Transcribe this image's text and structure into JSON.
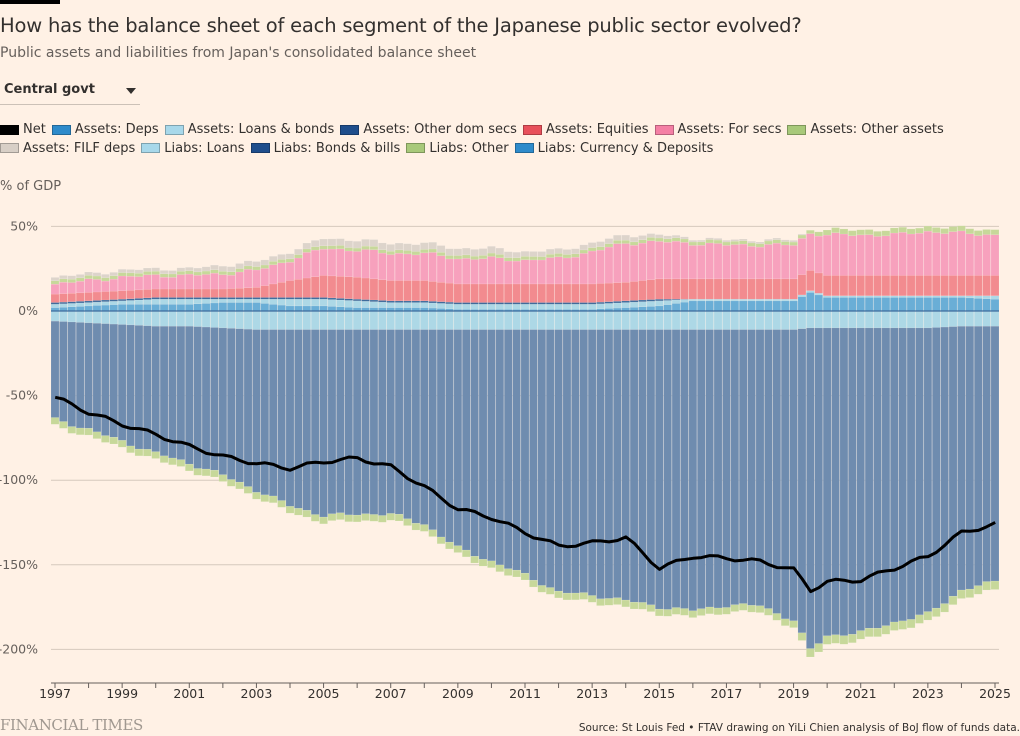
{
  "header": {
    "title": "How has the balance sheet of each segment of the Japanese public sector evolved?",
    "subtitle": "Public assets and liabilities from Japan's consolidated balance sheet"
  },
  "dropdown": {
    "selected": "Central govt"
  },
  "legend": [
    {
      "label": "Net",
      "color": "#000000"
    },
    {
      "label": "Assets: Deps",
      "color": "#2e8bcb"
    },
    {
      "label": "Assets: Loans & bonds",
      "color": "#a8d8ea"
    },
    {
      "label": "Assets: Other dom secs",
      "color": "#1f4e8c"
    },
    {
      "label": "Assets: Equities",
      "color": "#e8505b"
    },
    {
      "label": "Assets: For secs",
      "color": "#f47fa4"
    },
    {
      "label": "Assets: Other assets",
      "color": "#a8c97a"
    },
    {
      "label": "Assets: FILF deps",
      "color": "#d8cfc6"
    },
    {
      "label": "Liabs: Loans",
      "color": "#a8d8ea"
    },
    {
      "label": "Liabs: Bonds & bills",
      "color": "#1f4e8c"
    },
    {
      "label": "Liabs: Other",
      "color": "#a8c97a"
    },
    {
      "label": "Liabs: Currency & Deposits",
      "color": "#2e8bcb"
    }
  ],
  "axis": {
    "unit_label": "% of GDP"
  },
  "footer": {
    "brand": "FINANCIAL TIMES",
    "source": "Source: St Louis Fed • FTAV drawing on YiLi Chien analysis of BoJ flow of funds data."
  },
  "chart_data": {
    "type": "bar",
    "stacked": true,
    "title": "How has the balance sheet of each segment of the Japanese public sector evolved?",
    "subtitle": "Public assets and liabilities from Japan's consolidated balance sheet",
    "ylabel": "% of GDP",
    "xlabel": "",
    "ylim": [
      -220,
      55
    ],
    "yticks": [
      50,
      0,
      -50,
      -100,
      -150,
      -200
    ],
    "ytick_labels": [
      "50%",
      "0%",
      "-50%",
      "-100%",
      "-150%",
      "-200%"
    ],
    "xlim": [
      1997.0,
      2025.25
    ],
    "xticks": [
      1997,
      1998,
      1999,
      2000,
      2001,
      2002,
      2003,
      2004,
      2005,
      2006,
      2007,
      2008,
      2009,
      2010,
      2011,
      2012,
      2013,
      2014,
      2015,
      2016,
      2017,
      2018,
      2019,
      2020,
      2021,
      2022,
      2023,
      2024,
      2025
    ],
    "xtick_labels": [
      "1997",
      "",
      "1999",
      "",
      "2001",
      "",
      "2003",
      "",
      "2005",
      "",
      "2007",
      "",
      "2009",
      "",
      "2011",
      "",
      "2013",
      "",
      "2015",
      "",
      "2017",
      "",
      "2019",
      "",
      "2021",
      "",
      "2023",
      "",
      "2025"
    ],
    "frequency": "quarterly",
    "start": "1997Q1",
    "grid": true,
    "legend_position": "top",
    "anchor_years": [
      1997,
      1998,
      1999,
      2000,
      2001,
      2002,
      2003,
      2004,
      2005,
      2006,
      2007,
      2008,
      2009,
      2010,
      2011,
      2012,
      2013,
      2014,
      2015,
      2016,
      2017,
      2018,
      2019,
      2019.5,
      2020,
      2021,
      2022,
      2023,
      2024,
      2025
    ],
    "series": [
      {
        "name": "Assets: Deps",
        "color": "#6aaed6",
        "values": [
          2,
          3,
          4,
          4,
          4,
          5,
          5,
          3,
          3,
          2,
          2,
          2,
          1,
          1,
          1,
          1,
          1,
          2,
          3,
          6,
          6,
          6,
          6,
          11,
          8,
          8,
          8,
          8,
          8,
          7
        ]
      },
      {
        "name": "Assets: Loans & bonds",
        "color": "#add8e6",
        "values": [
          2,
          2,
          2,
          3,
          3,
          2,
          2,
          4,
          4,
          4,
          3,
          3,
          3,
          3,
          3,
          3,
          3,
          3,
          3,
          1,
          1,
          1,
          1,
          1,
          1,
          1,
          1,
          1,
          1,
          2
        ]
      },
      {
        "name": "Assets: Other dom secs",
        "color": "#3f6c9c",
        "values": [
          1,
          1,
          1,
          1,
          1,
          1,
          1,
          1,
          1,
          1,
          1,
          1,
          1,
          1,
          1,
          1,
          1,
          1,
          1,
          0,
          0,
          0,
          0,
          0,
          0,
          0,
          0,
          0,
          0,
          0
        ]
      },
      {
        "name": "Assets: Equities",
        "color": "#f28b8f",
        "values": [
          5,
          5,
          5,
          5,
          5,
          5,
          6,
          10,
          13,
          13,
          12,
          12,
          11,
          11,
          11,
          11,
          11,
          11,
          12,
          12,
          12,
          12,
          12,
          12,
          12,
          12,
          12,
          12,
          12,
          12
        ]
      },
      {
        "name": "Assets: For secs",
        "color": "#f7a1bd",
        "values": [
          6,
          7,
          8,
          8,
          8,
          9,
          10,
          12,
          16,
          16,
          16,
          16,
          15,
          15,
          14,
          15,
          19,
          23,
          22,
          21,
          20,
          20,
          20,
          22,
          24,
          24,
          24,
          26,
          25,
          24
        ]
      },
      {
        "name": "Assets: Other assets",
        "color": "#c7d89a",
        "values": [
          2,
          2,
          2,
          2,
          2,
          2,
          2,
          2,
          2,
          2,
          2,
          2,
          2,
          2,
          2,
          2,
          2,
          2,
          2,
          2,
          2,
          2,
          2,
          2,
          3,
          3,
          3,
          3,
          3,
          3
        ]
      },
      {
        "name": "Assets: FILF deps",
        "color": "#ddd4cb",
        "values": [
          2,
          2,
          2,
          2,
          2,
          3,
          3,
          3,
          4,
          4,
          4,
          4,
          4,
          4,
          3,
          3,
          3,
          3,
          2,
          1,
          1,
          1,
          1,
          0,
          0,
          0,
          0,
          0,
          0,
          0
        ]
      },
      {
        "name": "Liabs: Loans",
        "color": "#add8e6",
        "values": [
          -6,
          -7,
          -8,
          -9,
          -9,
          -10,
          -11,
          -11,
          -11,
          -11,
          -11,
          -11,
          -11,
          -11,
          -11,
          -11,
          -11,
          -11,
          -11,
          -11,
          -11,
          -11,
          -11,
          -10,
          -10,
          -10,
          -10,
          -10,
          -9,
          -9
        ]
      },
      {
        "name": "Liabs: Bonds & bills",
        "color": "#6f8caf",
        "values": [
          -58,
          -63,
          -69,
          -75,
          -81,
          -87,
          -95,
          -104,
          -110,
          -109,
          -109,
          -115,
          -129,
          -137,
          -145,
          -155,
          -157,
          -160,
          -164,
          -166,
          -163,
          -163,
          -172,
          -190,
          -182,
          -180,
          -174,
          -169,
          -156,
          -151
        ]
      },
      {
        "name": "Liabs: Other",
        "color": "#c7d89a",
        "values": [
          -4,
          -4,
          -4,
          -4,
          -4,
          -4,
          -4,
          -4,
          -4,
          -4,
          -4,
          -4,
          -4,
          -4,
          -4,
          -4,
          -4,
          -4,
          -4,
          -4,
          -4,
          -4,
          -4,
          -5,
          -5,
          -5,
          -5,
          -5,
          -5,
          -5
        ]
      },
      {
        "name": "Liabs: Currency & Deposits",
        "color": "#2e8bcb",
        "values": [
          0,
          0,
          0,
          0,
          0,
          0,
          0,
          0,
          0,
          0,
          0,
          0,
          0,
          0,
          0,
          0,
          0,
          0,
          0,
          0,
          0,
          0,
          0,
          0,
          0,
          0,
          0,
          0,
          0,
          0
        ]
      }
    ],
    "net": {
      "name": "Net",
      "color": "#000000",
      "values": [
        -51,
        -60,
        -67,
        -73,
        -80,
        -86,
        -90,
        -93,
        -89,
        -87,
        -92,
        -104,
        -117,
        -122,
        -131,
        -139,
        -137,
        -134,
        -152,
        -145,
        -146,
        -148,
        -153,
        -165,
        -160,
        -159,
        -152,
        -145,
        -131,
        -126
      ]
    }
  }
}
